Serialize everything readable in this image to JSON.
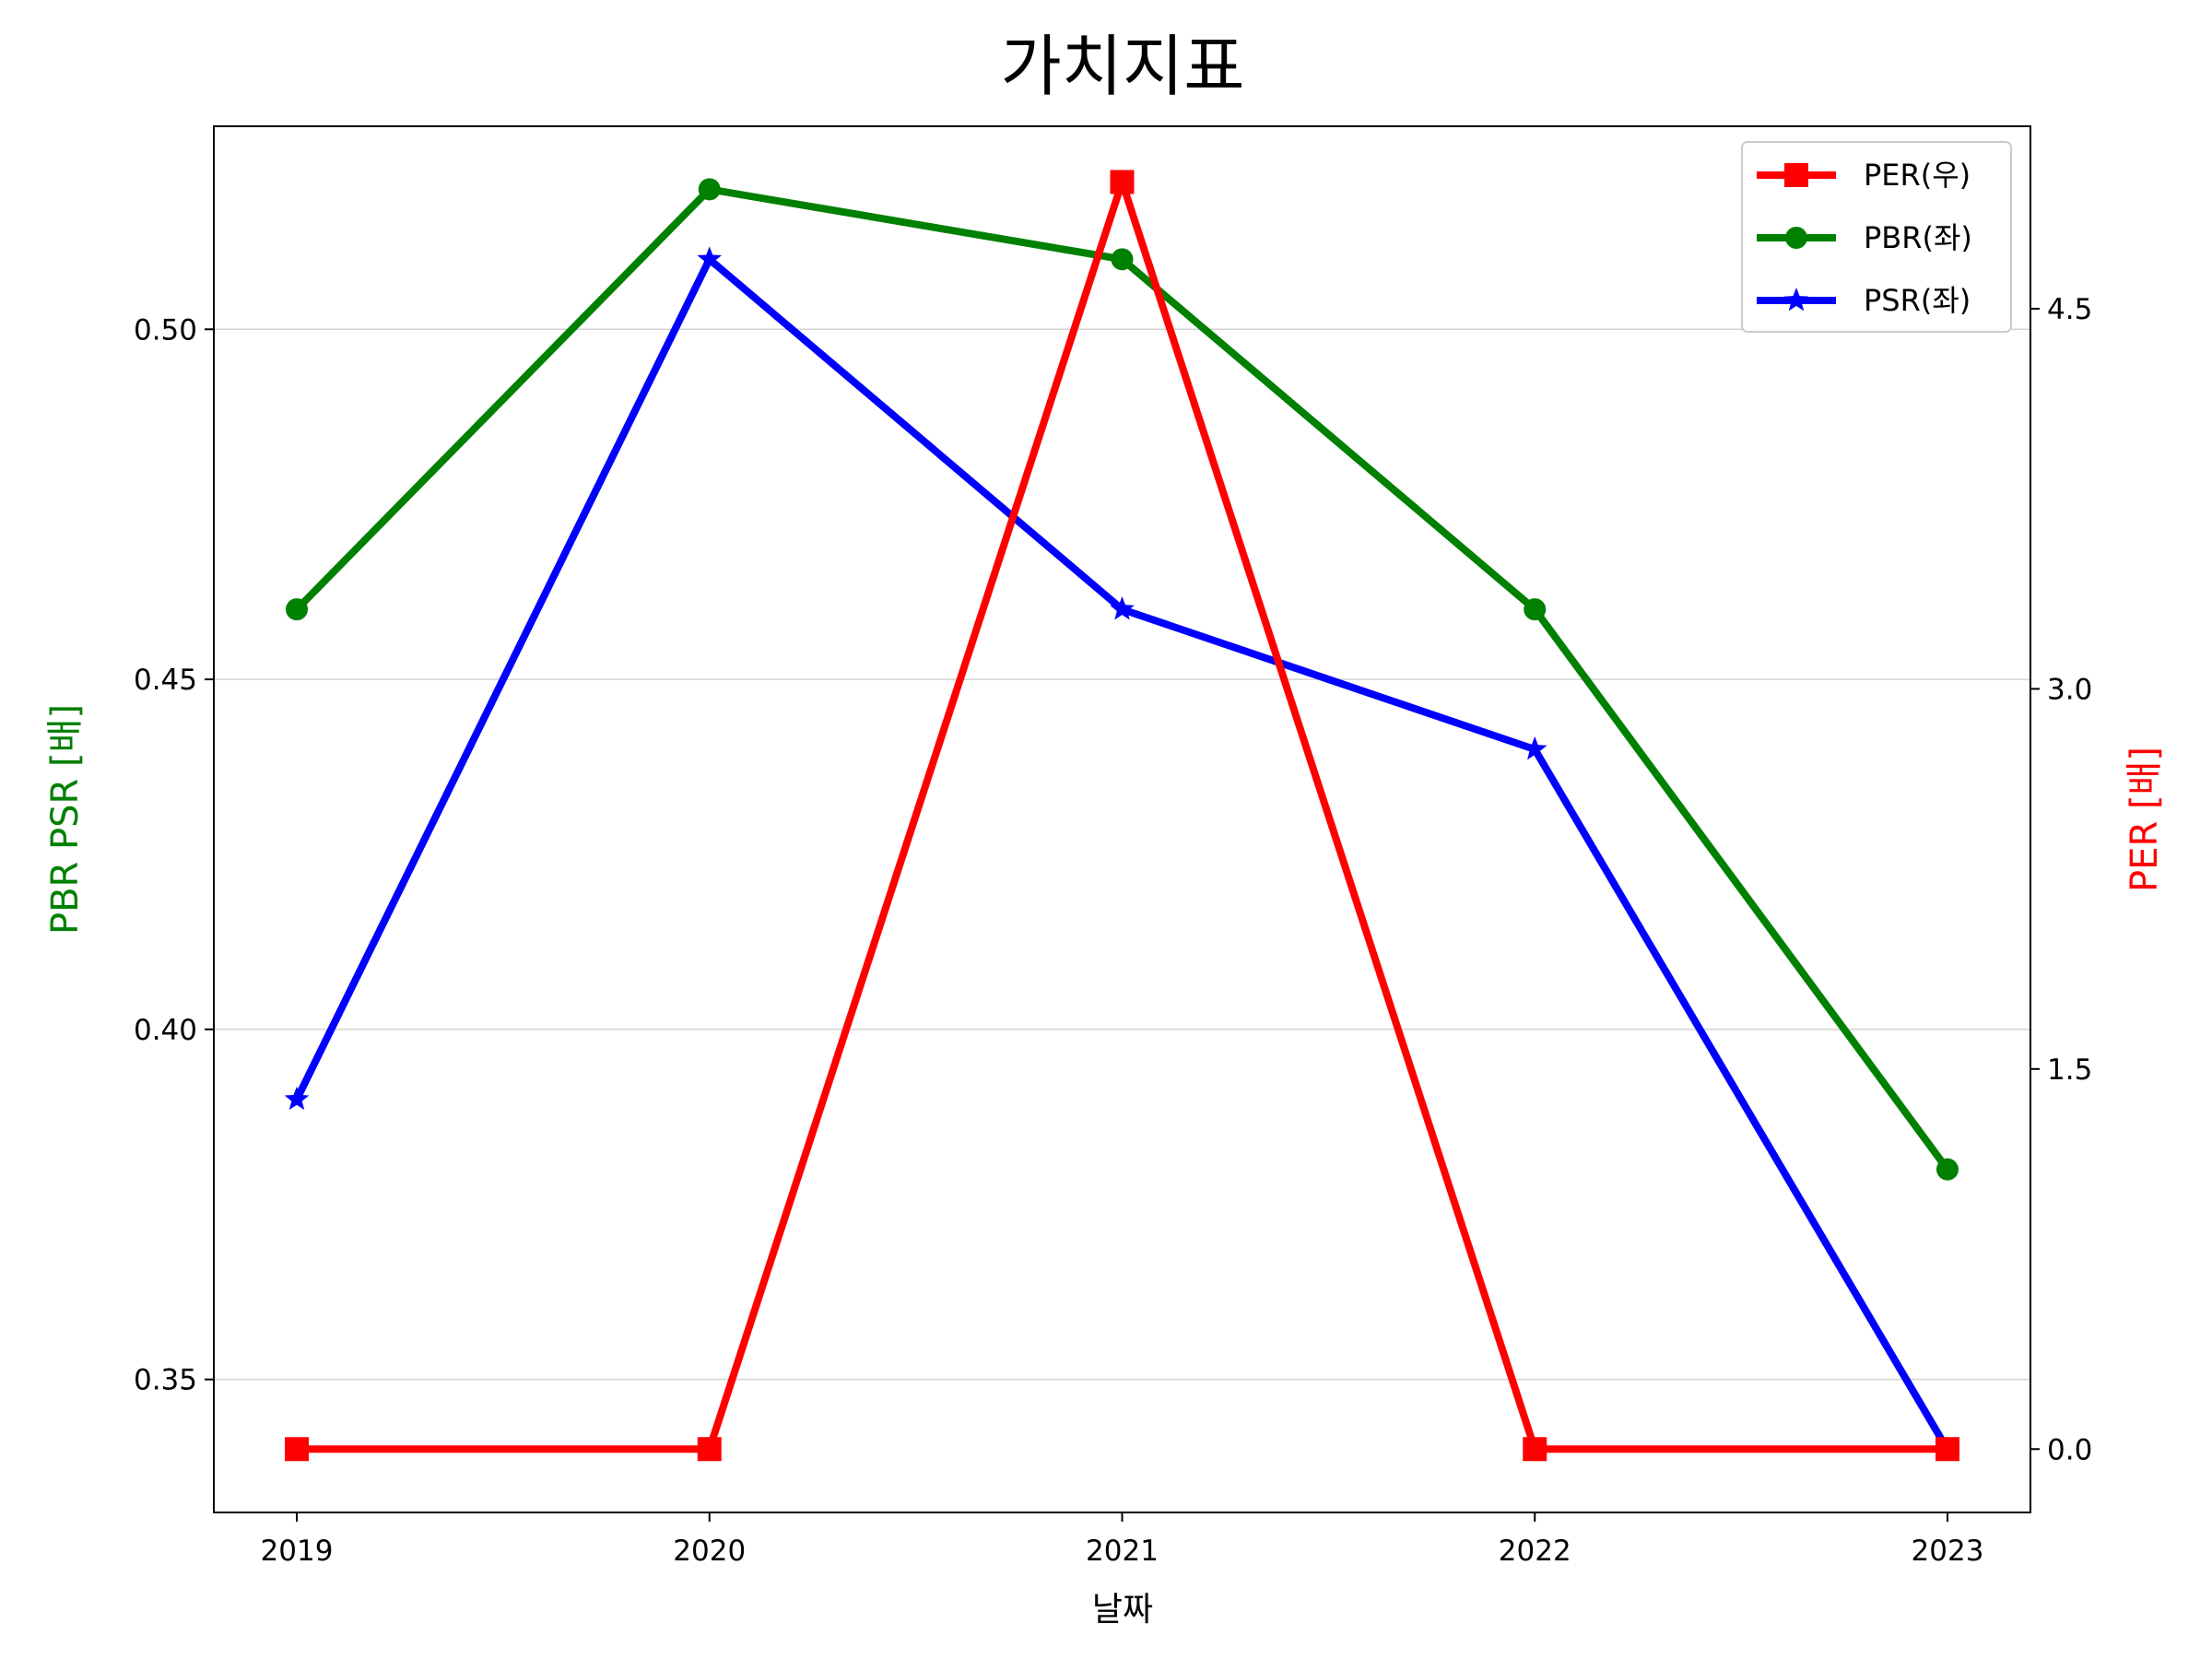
{
  "chart_data": {
    "type": "line",
    "title": "가치지표",
    "xlabel": "날짜",
    "ylabel_left": "PBR PSR [배]",
    "ylabel_right": "PER [배]",
    "categories": [
      "2019",
      "2020",
      "2021",
      "2022",
      "2023"
    ],
    "ylim_left": [
      0.331,
      0.529
    ],
    "ylim_right": [
      -0.25,
      5.22
    ],
    "yticks_left": [
      "0.35",
      "0.40",
      "0.45",
      "0.50"
    ],
    "yticks_right": [
      "0.0",
      "1.5",
      "3.0",
      "4.5"
    ],
    "grid": "horizontal",
    "legend_position": "top-right",
    "series": [
      {
        "name": "PER(우)",
        "axis": "right",
        "color": "#ff0000",
        "marker": "square",
        "values": [
          0.0,
          0.0,
          5.0,
          0.0,
          0.0
        ]
      },
      {
        "name": "PBR(좌)",
        "axis": "left",
        "color": "#008000",
        "marker": "circle",
        "values": [
          0.46,
          0.52,
          0.51,
          0.46,
          0.38
        ]
      },
      {
        "name": "PSR(좌)",
        "axis": "left",
        "color": "#0000ff",
        "marker": "star",
        "values": [
          0.39,
          0.51,
          0.46,
          0.44,
          0.34
        ]
      }
    ],
    "colors": {
      "left_axis_label": "#008000",
      "right_axis_label": "#ff0000"
    }
  }
}
